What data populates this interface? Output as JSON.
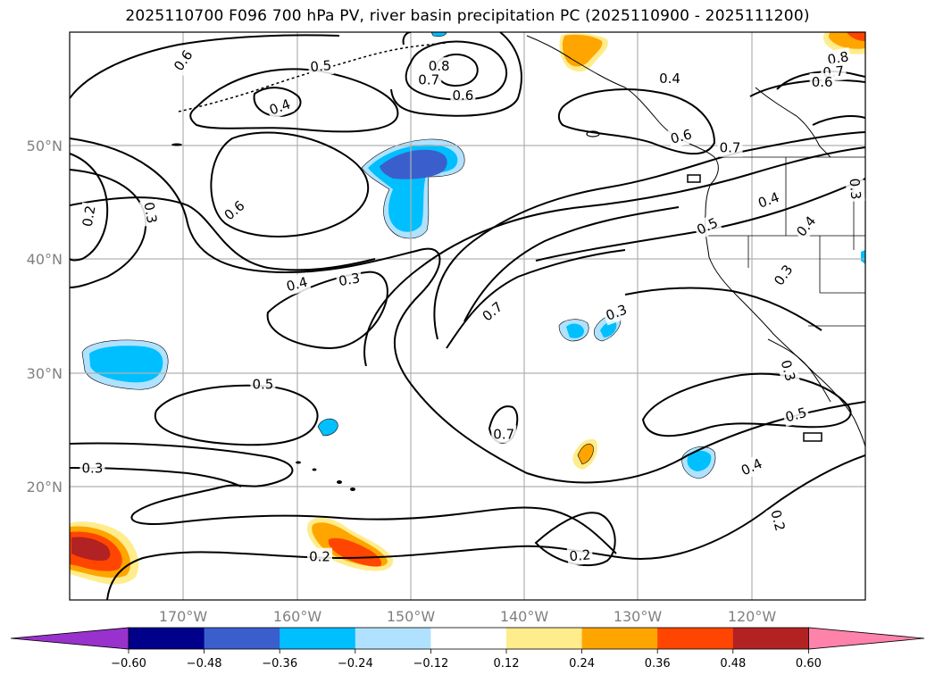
{
  "title": "2025110700 F096 700 hPa PV, river basin precipitation PC (2025110900 - 2025111200)",
  "map": {
    "projection": "cylindrical",
    "extent": {
      "lon_min": -180,
      "lon_max": -110,
      "lat_min": 10,
      "lat_max": 60
    },
    "grid": true,
    "lat_labels": [
      "20°N",
      "30°N",
      "40°N",
      "50°N"
    ],
    "lon_labels": [
      "170°W",
      "160°W",
      "150°W",
      "140°W",
      "130°W",
      "120°W"
    ]
  },
  "contour_labels": [
    {
      "text": "0.6",
      "lon": -170,
      "lat": 57.5,
      "rot": -55
    },
    {
      "text": "0.5",
      "lon": -157.9,
      "lat": 57.0,
      "rot": -5
    },
    {
      "text": "0.4",
      "lon": -161.5,
      "lat": 53.4,
      "rot": -20
    },
    {
      "text": "0.8",
      "lon": -147.5,
      "lat": 57.0,
      "rot": 0
    },
    {
      "text": "0.7",
      "lon": -148.4,
      "lat": 55.8,
      "rot": 0
    },
    {
      "text": "0.6",
      "lon": -145.4,
      "lat": 54.4,
      "rot": 0
    },
    {
      "text": "0.4",
      "lon": -127.2,
      "lat": 55.9,
      "rot": 0
    },
    {
      "text": "0.8",
      "lon": -112.4,
      "lat": 57.7,
      "rot": -10
    },
    {
      "text": "0.7",
      "lon": -112.8,
      "lat": 56.5,
      "rot": -5
    },
    {
      "text": "0.6",
      "lon": -113.8,
      "lat": 55.6,
      "rot": 0
    },
    {
      "text": "0.6",
      "lon": -126.2,
      "lat": 50.8,
      "rot": -15
    },
    {
      "text": "0.7",
      "lon": -121.9,
      "lat": 49.8,
      "rot": 0
    },
    {
      "text": "0.2",
      "lon": -178.3,
      "lat": 43.8,
      "rot": -80
    },
    {
      "text": "0.3",
      "lon": -172.9,
      "lat": 44.1,
      "rot": 80
    },
    {
      "text": "0.6",
      "lon": -165.5,
      "lat": 44.3,
      "rot": -40
    },
    {
      "text": "0.4",
      "lon": -118.5,
      "lat": 45.2,
      "rot": -20
    },
    {
      "text": "0.5",
      "lon": -123.9,
      "lat": 42.9,
      "rot": -25
    },
    {
      "text": "0.3",
      "lon": -110.9,
      "lat": 46.2,
      "rot": 85
    },
    {
      "text": "0.4",
      "lon": -115.2,
      "lat": 42.9,
      "rot": -50
    },
    {
      "text": "0.4",
      "lon": -160.0,
      "lat": 37.8,
      "rot": -15
    },
    {
      "text": "0.3",
      "lon": -155.4,
      "lat": 38.2,
      "rot": -10
    },
    {
      "text": "0.3",
      "lon": -117.2,
      "lat": 38.6,
      "rot": -55
    },
    {
      "text": "0.7",
      "lon": -142.8,
      "lat": 35.4,
      "rot": -40
    },
    {
      "text": "0.3",
      "lon": -131.9,
      "lat": 35.3,
      "rot": -20
    },
    {
      "text": "0.3",
      "lon": -116.8,
      "lat": 30.2,
      "rot": 75
    },
    {
      "text": "0.5",
      "lon": -163.0,
      "lat": 29.0,
      "rot": 0
    },
    {
      "text": "0.5",
      "lon": -116.1,
      "lat": 26.3,
      "rot": -15
    },
    {
      "text": "0.7",
      "lon": -141.8,
      "lat": 24.6,
      "rot": 0
    },
    {
      "text": "0.4",
      "lon": -120.0,
      "lat": 21.7,
      "rot": -25
    },
    {
      "text": "0.3",
      "lon": -178.0,
      "lat": 21.6,
      "rot": 0
    },
    {
      "text": "0.2",
      "lon": -117.7,
      "lat": 17.0,
      "rot": 75
    },
    {
      "text": "0.2",
      "lon": -158.0,
      "lat": 13.8,
      "rot": 0
    },
    {
      "text": "0.2",
      "lon": -135.1,
      "lat": 13.9,
      "rot": -5
    }
  ],
  "colorbar": {
    "ticks": [
      "−0.60",
      "−0.48",
      "−0.36",
      "−0.24",
      "−0.12",
      "0.12",
      "0.24",
      "0.36",
      "0.48",
      "0.60"
    ],
    "colors": [
      "#9932cc",
      "#00008b",
      "#3a5fcd",
      "#00bfff",
      "#b0e2ff",
      "#ffffff",
      "#ffec8b",
      "#ffa500",
      "#ff4500",
      "#b22222",
      "#ff82ab"
    ]
  },
  "colors": {
    "contour": "#000000",
    "grid": "#b0b0b0",
    "label": "#808080"
  }
}
